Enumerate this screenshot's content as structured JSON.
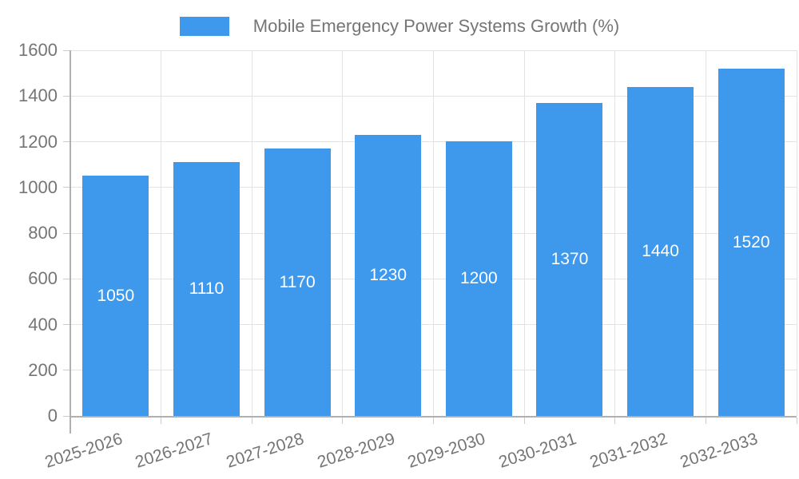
{
  "chart_data": {
    "type": "bar",
    "title": "Mobile Emergency Power Systems Growth (%)",
    "categories": [
      "2025-2026",
      "2026-2027",
      "2027-2028",
      "2028-2029",
      "2029-2030",
      "2030-2031",
      "2031-2032",
      "2032-2033"
    ],
    "series": [
      {
        "name": "Mobile Emergency Power Systems Growth (%)",
        "values": [
          1050,
          1110,
          1170,
          1230,
          1200,
          1370,
          1440,
          1520
        ]
      }
    ],
    "value_labels": [
      "1050",
      "1110",
      "1170",
      "1230",
      "1200",
      "1370",
      "1440",
      "1520"
    ],
    "xlabel": "",
    "ylabel": "",
    "ylim": [
      0,
      1600
    ],
    "yticks": [
      0,
      200,
      400,
      600,
      800,
      1000,
      1200,
      1400,
      1600
    ],
    "ytick_labels": [
      "0",
      "200",
      "400",
      "600",
      "800",
      "1000",
      "1200",
      "1400",
      "1600"
    ],
    "grid": true,
    "legend_position": "top"
  },
  "colors": {
    "bar": "#3e99ec",
    "grid": "#e3e3e3",
    "axis": "#b0b0b0",
    "tick": "#cccccc",
    "text": "#757575",
    "value_text": "#ffffff",
    "background": "#ffffff"
  }
}
